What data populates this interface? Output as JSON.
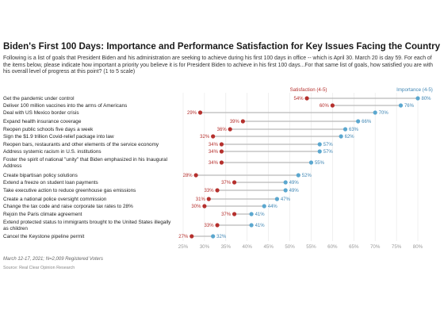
{
  "chart_data": {
    "type": "dot",
    "title": "Biden's First 100 Days: Importance and Performance Satisfaction for Key Issues Facing the Country",
    "subtitle": "Following is a list of goals that President Biden and his administration are seeking to achieve during his first 100 days in office -- which is April 30. March 20 is day 59. For each of the items below, please indicate how important a priority you believe it is for President Biden to achieve in his first 100 days...For that same list of goals, how satisfied you are with his overall level of progress at this point? (1 to 5 scale)",
    "footnote": "March 12-17, 2021; N=2,009 Registered Voters",
    "source": "Source: Real Clear Opinion Research",
    "xlim": [
      25,
      80
    ],
    "x_ticks": [
      25,
      30,
      35,
      40,
      45,
      50,
      55,
      60,
      65,
      70,
      75,
      80
    ],
    "tick_suffix": "%",
    "categories": [
      "Get the pandemic under control",
      "Deliver 100 million vaccines into the arms of Americans",
      "Deal with US Mexico border crisis",
      "Expand health insurance coverage",
      "Reopen public schools five days a week",
      "Sign the $1.9 trillion Covid-relief package into law",
      "Reopen bars, restaurants and other elements of the service economy",
      "Address systemic racism in U.S. institutions",
      "Foster the spirit of national \"unity\" that Biden emphasized in his Inaugural Address",
      "Create bipartisan policy solutions",
      "Extend a freeze on student loan payments",
      "Take executive action to reduce greenhouse gas emissions",
      "Create a national police oversight commission",
      "Change the tax code and raise corporate tax rates to 28%",
      "Rejoin the Paris climate agreement",
      "Extend protected status to immigrants brought to the United States illegally as children",
      "Cancel the Keystone pipeline permit"
    ],
    "series": [
      {
        "name": "Satisfaction (4-5)",
        "color": "#b5302d",
        "values": [
          54,
          60,
          29,
          39,
          36,
          32,
          34,
          34,
          34,
          28,
          37,
          33,
          31,
          30,
          37,
          33,
          27
        ]
      },
      {
        "name": "Importance (4-5)",
        "color": "#5aa7cf",
        "values": [
          80,
          76,
          70,
          66,
          63,
          62,
          57,
          57,
          55,
          52,
          49,
          49,
          47,
          44,
          41,
          41,
          32
        ]
      }
    ]
  }
}
